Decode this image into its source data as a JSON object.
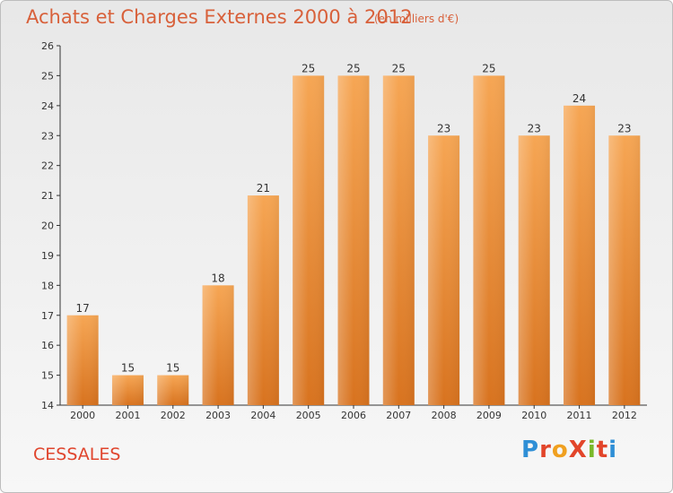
{
  "header": {
    "title": "Achats et Charges Externes 2000 à 2012",
    "subtitle": "(en milliers d'€)"
  },
  "footer": {
    "commune": "CESSALES",
    "logo_text": "ProXiti"
  },
  "colors": {
    "bar_top": "#f6a654",
    "bar_bottom": "#d8731f",
    "title": "#d8603a",
    "commune": "#e0452d"
  },
  "chart_data": {
    "type": "bar",
    "title": "Achats et Charges Externes 2000 à 2012",
    "subtitle": "(en milliers d'€)",
    "categories": [
      "2000",
      "2001",
      "2002",
      "2003",
      "2004",
      "2005",
      "2006",
      "2007",
      "2008",
      "2009",
      "2010",
      "2011",
      "2012"
    ],
    "values": [
      17,
      15,
      15,
      18,
      21,
      25,
      25,
      25,
      23,
      25,
      23,
      24,
      23
    ],
    "ylim": [
      14,
      26
    ],
    "yticks": [
      14,
      15,
      16,
      17,
      18,
      19,
      20,
      21,
      22,
      23,
      24,
      25,
      26
    ],
    "grid": false,
    "data_labels": true
  }
}
